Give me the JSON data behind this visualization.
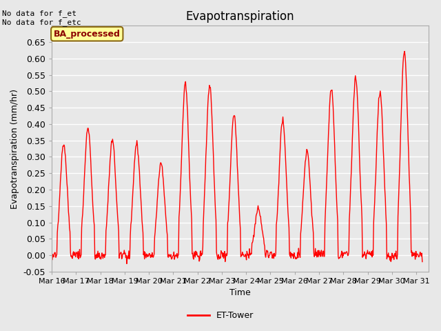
{
  "title": "Evapotranspiration",
  "ylabel": "Evapotranspiration (mm/hr)",
  "xlabel": "Time",
  "ylim": [
    -0.05,
    0.7
  ],
  "yticks": [
    -0.05,
    0.0,
    0.05,
    0.1,
    0.15,
    0.2,
    0.25,
    0.3,
    0.35,
    0.4,
    0.45,
    0.5,
    0.55,
    0.6,
    0.65
  ],
  "line_color": "#ff0000",
  "line_width": 1.0,
  "bg_color": "#e8e8e8",
  "plot_bg_color": "#e8e8e8",
  "grid_color": "#ffffff",
  "text_topleft": "No data for f_et\nNo data for f_etc",
  "legend_label": "ET-Tower",
  "legend_box_label": "BA_processed",
  "legend_box_color": "#ffff99",
  "legend_box_border": "#8b6914",
  "xtick_labels": [
    "Mar 16",
    "Mar 17",
    "Mar 18",
    "Mar 19",
    "Mar 20",
    "Mar 21",
    "Mar 22",
    "Mar 23",
    "Mar 24",
    "Mar 25",
    "Mar 26",
    "Mar 27",
    "Mar 28",
    "Mar 29",
    "Mar 30",
    "Mar 31"
  ],
  "num_days": 15,
  "peaks": [
    0.34,
    0.39,
    0.35,
    0.34,
    0.28,
    0.52,
    0.52,
    0.43,
    0.14,
    0.41,
    0.32,
    0.51,
    0.54,
    0.5,
    0.62
  ]
}
